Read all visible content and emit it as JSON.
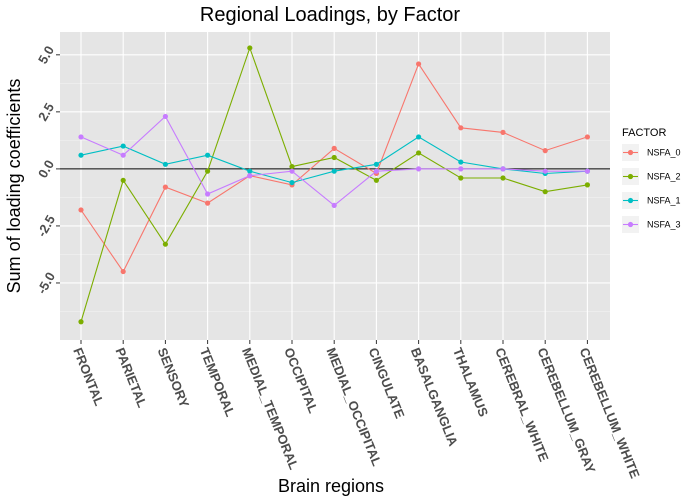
{
  "chart_data": {
    "type": "line",
    "title": "Regional Loadings, by Factor",
    "xlabel": "Brain regions",
    "ylabel": "Sum of loading coefficients",
    "categories": [
      "FRONTAL",
      "PARIETAL",
      "SENSORY",
      "TEMPORAL",
      "MEDIAL_TEMPORAL",
      "OCCIPITAL",
      "MEDIAL_OCCIPITAL",
      "CINGULATE",
      "BASALGANGLIA",
      "THALAMUS",
      "CEREBRAL_WHITE",
      "CEREBELLUM_GRAY",
      "CEREBELLUM_WHITE"
    ],
    "ylim": [
      -7.5,
      6.0
    ],
    "yticks": [
      -5.0,
      -2.5,
      0.0,
      2.5,
      5.0
    ],
    "ytick_labels": [
      "-5.0",
      "-2.5",
      "0.0",
      "2.5",
      "5.0"
    ],
    "grid": true,
    "reference_line": 0,
    "legend": {
      "title": "FACTOR",
      "position": "right"
    },
    "series": [
      {
        "name": "NSFA_0",
        "color": "#F8766D",
        "values": [
          -1.8,
          -4.5,
          -0.8,
          -1.5,
          -0.3,
          -0.7,
          0.9,
          -0.2,
          4.6,
          1.8,
          1.6,
          0.8,
          1.4
        ]
      },
      {
        "name": "NSFA_2",
        "color": "#7CAE00",
        "values": [
          -6.7,
          -0.5,
          -3.3,
          -0.1,
          5.3,
          0.1,
          0.5,
          -0.5,
          0.7,
          -0.4,
          -0.4,
          -1.0,
          -0.7
        ]
      },
      {
        "name": "NSFA_1",
        "color": "#00BFC4",
        "values": [
          0.6,
          1.0,
          0.2,
          0.6,
          -0.1,
          -0.6,
          -0.1,
          0.2,
          1.4,
          0.3,
          0.0,
          -0.2,
          -0.1
        ]
      },
      {
        "name": "NSFA_3",
        "color": "#C77CFF",
        "values": [
          1.4,
          0.6,
          2.3,
          -1.1,
          -0.3,
          -0.1,
          -1.6,
          -0.1,
          0.0,
          0.0,
          0.0,
          -0.1,
          -0.1
        ]
      }
    ]
  }
}
